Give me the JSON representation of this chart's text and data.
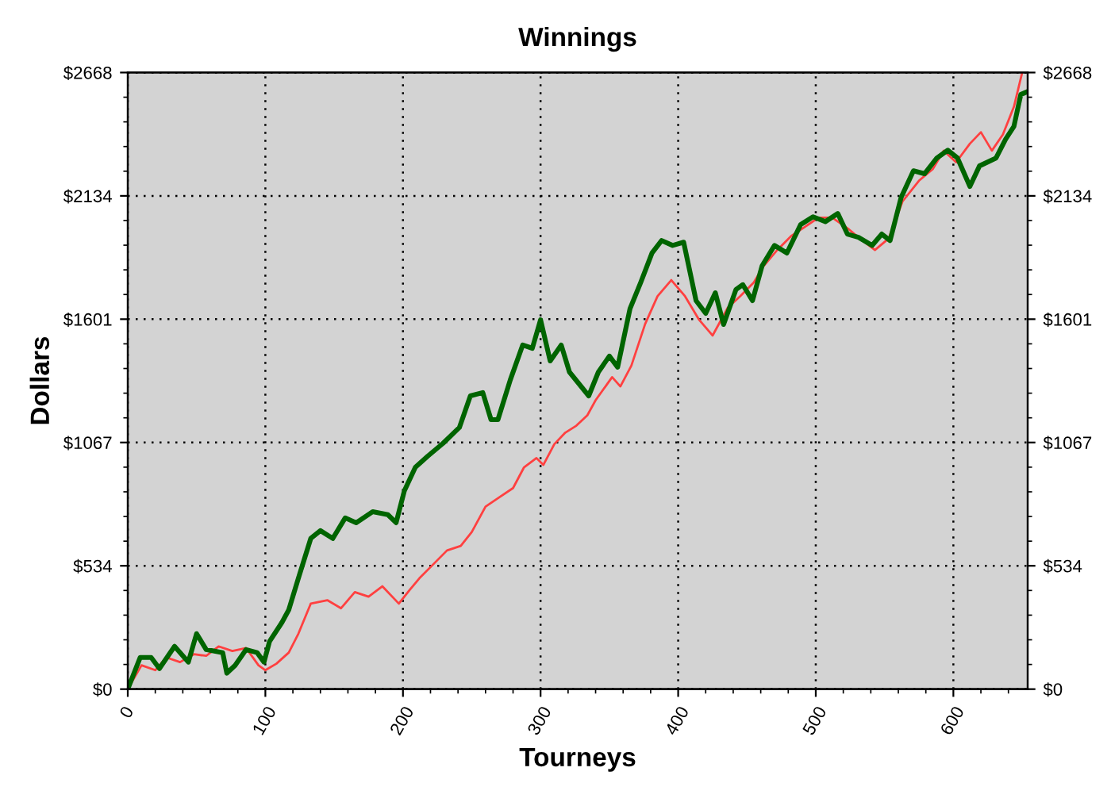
{
  "chart_data": {
    "type": "line",
    "title": "Winnings",
    "xlabel": "Tourneys",
    "ylabel": "Dollars",
    "xlim": [
      0,
      654
    ],
    "xticks": [
      0,
      100,
      200,
      300,
      400,
      500,
      600
    ],
    "ylim": [
      0,
      2668
    ],
    "yticks": [
      {
        "value": 0,
        "label": "$0"
      },
      {
        "value": 533.6,
        "label": "$534"
      },
      {
        "value": 1067.2,
        "label": "$1067"
      },
      {
        "value": 1600.8,
        "label": "$1601"
      },
      {
        "value": 2134.4,
        "label": "$2134"
      },
      {
        "value": 2668,
        "label": "$2668"
      }
    ],
    "y2lim": [
      0,
      2668
    ],
    "y2ticks": [
      {
        "value": 0,
        "label": "$0"
      },
      {
        "value": 533.6,
        "label": "$534"
      },
      {
        "value": 1067.2,
        "label": "$1067"
      },
      {
        "value": 1600.8,
        "label": "$1601"
      },
      {
        "value": 2134.4,
        "label": "$2134"
      },
      {
        "value": 2668,
        "label": "$2668"
      }
    ],
    "grid": true,
    "marker": "none",
    "line_style": "solid",
    "series": [
      {
        "color": "#ff4040",
        "x": [
          0,
          10,
          20,
          28,
          38,
          48,
          57,
          66,
          76,
          86,
          95,
          100,
          108,
          117,
          124,
          133,
          145,
          155,
          165,
          175,
          185,
          197,
          205,
          212,
          222,
          232,
          242,
          250,
          260,
          270,
          280,
          288,
          297,
          302,
          310,
          318,
          326,
          334,
          340,
          352,
          358,
          366,
          376,
          385,
          395,
          405,
          415,
          425,
          436,
          445,
          455,
          462,
          472,
          482,
          492,
          502,
          512,
          524,
          532,
          543,
          553,
          563,
          575,
          585,
          593,
          602,
          612,
          620,
          628,
          636,
          644,
          650
        ],
        "values": [
          0,
          103,
          82,
          137,
          117,
          151,
          144,
          185,
          165,
          178,
          103,
          82,
          110,
          158,
          240,
          370,
          385,
          350,
          420,
          400,
          445,
          370,
          430,
          480,
          540,
          600,
          620,
          680,
          790,
          830,
          870,
          960,
          1000,
          970,
          1060,
          1110,
          1140,
          1185,
          1250,
          1350,
          1310,
          1400,
          1580,
          1700,
          1770,
          1700,
          1600,
          1530,
          1650,
          1700,
          1760,
          1830,
          1900,
          1960,
          2000,
          2040,
          2040,
          1990,
          1950,
          1900,
          1950,
          2110,
          2200,
          2250,
          2330,
          2280,
          2360,
          2410,
          2330,
          2400,
          2520,
          2668
        ]
      },
      {
        "color": "#006400",
        "x": [
          0,
          9,
          17,
          23,
          34,
          44,
          50,
          57,
          69,
          72,
          78,
          86,
          94,
          99,
          103,
          112,
          117,
          124,
          133,
          140,
          149,
          158,
          166,
          178,
          189,
          195,
          201,
          209,
          218,
          229,
          241,
          249,
          258,
          264,
          269,
          278,
          287,
          294,
          300,
          307,
          315,
          321,
          335,
          342,
          350,
          356,
          365,
          373,
          381,
          388,
          396,
          404,
          413,
          420,
          427,
          433,
          442,
          447,
          454,
          461,
          470,
          479,
          489,
          498,
          507,
          516,
          523,
          531,
          541,
          548,
          554,
          562,
          571,
          579,
          588,
          596,
          603,
          612,
          619,
          631,
          638,
          644,
          649,
          654
        ],
        "values": [
          0,
          137,
          137,
          89,
          185,
          117,
          240,
          171,
          158,
          69,
          103,
          171,
          158,
          117,
          206,
          288,
          343,
          480,
          652,
          686,
          652,
          741,
          720,
          768,
          755,
          720,
          858,
          960,
          1008,
          1063,
          1132,
          1269,
          1283,
          1166,
          1166,
          1338,
          1489,
          1475,
          1598,
          1420,
          1489,
          1372,
          1269,
          1372,
          1441,
          1393,
          1646,
          1763,
          1887,
          1941,
          1920,
          1934,
          1681,
          1626,
          1715,
          1578,
          1729,
          1750,
          1681,
          1832,
          1920,
          1887,
          2010,
          2044,
          2023,
          2058,
          1969,
          1955,
          1920,
          1969,
          1941,
          2127,
          2243,
          2230,
          2298,
          2332,
          2298,
          2175,
          2264,
          2298,
          2380,
          2435,
          2573,
          2586
        ]
      }
    ]
  }
}
